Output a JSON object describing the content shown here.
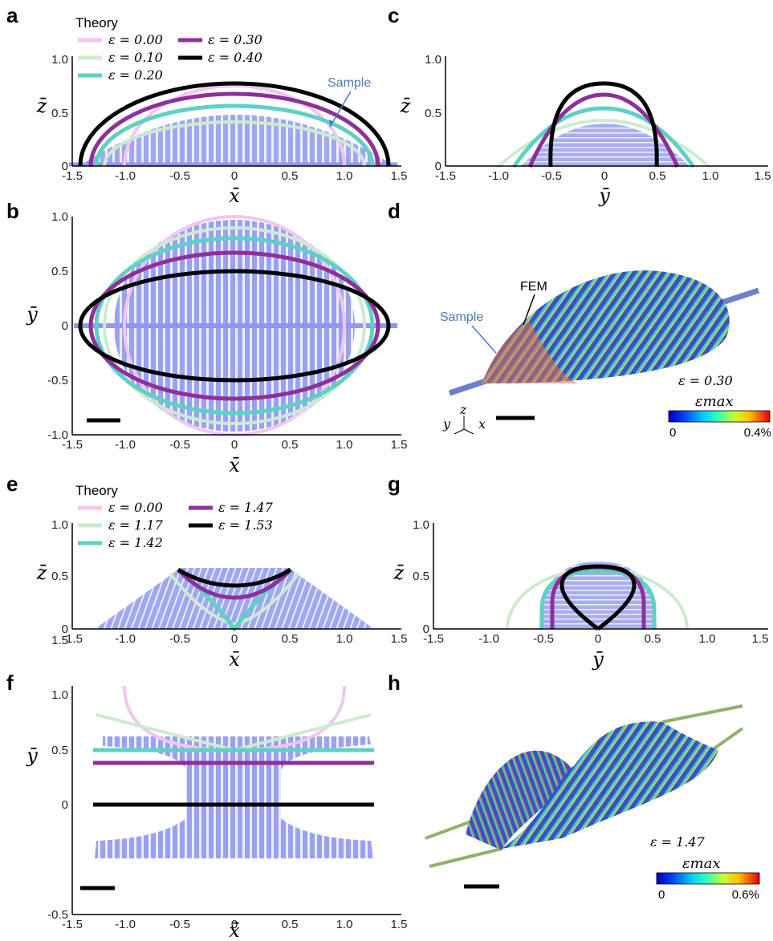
{
  "panels": {
    "a": {
      "label": "a",
      "xlabel": "x̄",
      "ylabel": "z̄",
      "xticks": [
        "-1.5",
        "-1.0",
        "-0.5",
        "0",
        "0.5",
        "1.0",
        "1.5"
      ],
      "yticks": [
        "0",
        "0.5",
        "1.0"
      ],
      "legend_title": "Theory",
      "sample_label": "Sample"
    },
    "b": {
      "label": "b",
      "xlabel": "x̄",
      "ylabel": "ȳ",
      "xticks": [
        "-1.5",
        "-1.0",
        "-0.5",
        "0",
        "0.5",
        "1.0",
        "1.5"
      ],
      "yticks": [
        "-1.0",
        "-0.5",
        "0",
        "0.5",
        "1.0"
      ]
    },
    "c": {
      "label": "c",
      "xlabel": "ȳ",
      "ylabel": "z̄",
      "xticks": [
        "-1.5",
        "-1.0",
        "-0.5",
        "0",
        "0.5",
        "1.0",
        "1.5"
      ],
      "yticks": [
        "0",
        "0.5",
        "1.0"
      ]
    },
    "d": {
      "label": "d",
      "fem_label": "FEM",
      "sample_label": "Sample",
      "eps_label": "ε = 0.30",
      "cbar_title": "εmax",
      "cbar_min": "0",
      "cbar_max": "0.4%",
      "axes_z": "z",
      "axes_y": "y",
      "axes_x": "x"
    },
    "e": {
      "label": "e",
      "xlabel": "x̄",
      "ylabel": "z̄",
      "xticks": [
        "-1.5",
        "-1.0",
        "-0.5",
        "0",
        "0.5",
        "1.0",
        "1.5"
      ],
      "yticks": [
        "0",
        "0.5",
        "1.0"
      ],
      "legend_title": "Theory"
    },
    "f": {
      "label": "f",
      "xlabel": "x̄",
      "ylabel": "ȳ",
      "xticks": [
        "-1.5",
        "-1.0",
        "-0.5",
        "0",
        "0.5",
        "1.0",
        "1.5"
      ],
      "yticks": [
        "-0.5",
        "0",
        "0.5",
        "1.0",
        "1.5"
      ]
    },
    "g": {
      "label": "g",
      "xlabel": "ȳ",
      "ylabel": "z̄",
      "xticks": [
        "-1.5",
        "-1.0",
        "-0.5",
        "0",
        "0.5",
        "1.0",
        "1.5"
      ],
      "yticks": [
        "0",
        "0.5",
        "1.0"
      ]
    },
    "h": {
      "label": "h",
      "eps_label": "ε = 1.47",
      "cbar_title": "εmax",
      "cbar_min": "0",
      "cbar_max": "0.6%"
    }
  },
  "legend_top": [
    {
      "text": "ε = 0.00",
      "color": "#f2c6ee"
    },
    {
      "text": "ε = 0.10",
      "color": "#cdebcf"
    },
    {
      "text": "ε = 0.20",
      "color": "#5fd0c4"
    },
    {
      "text": "ε = 0.30",
      "color": "#8e2f9a"
    },
    {
      "text": "ε = 0.40",
      "color": "#000000"
    }
  ],
  "legend_bottom": [
    {
      "text": "ε = 0.00",
      "color": "#f2c6ee"
    },
    {
      "text": "ε = 1.17",
      "color": "#cdebcf"
    },
    {
      "text": "ε = 1.42",
      "color": "#5fd0c4"
    },
    {
      "text": "ε = 1.47",
      "color": "#8e2f9a"
    },
    {
      "text": "ε = 1.53",
      "color": "#000000"
    }
  ],
  "colors": {
    "sample": "#7c87e8",
    "sample_text": "#4a78c4"
  }
}
